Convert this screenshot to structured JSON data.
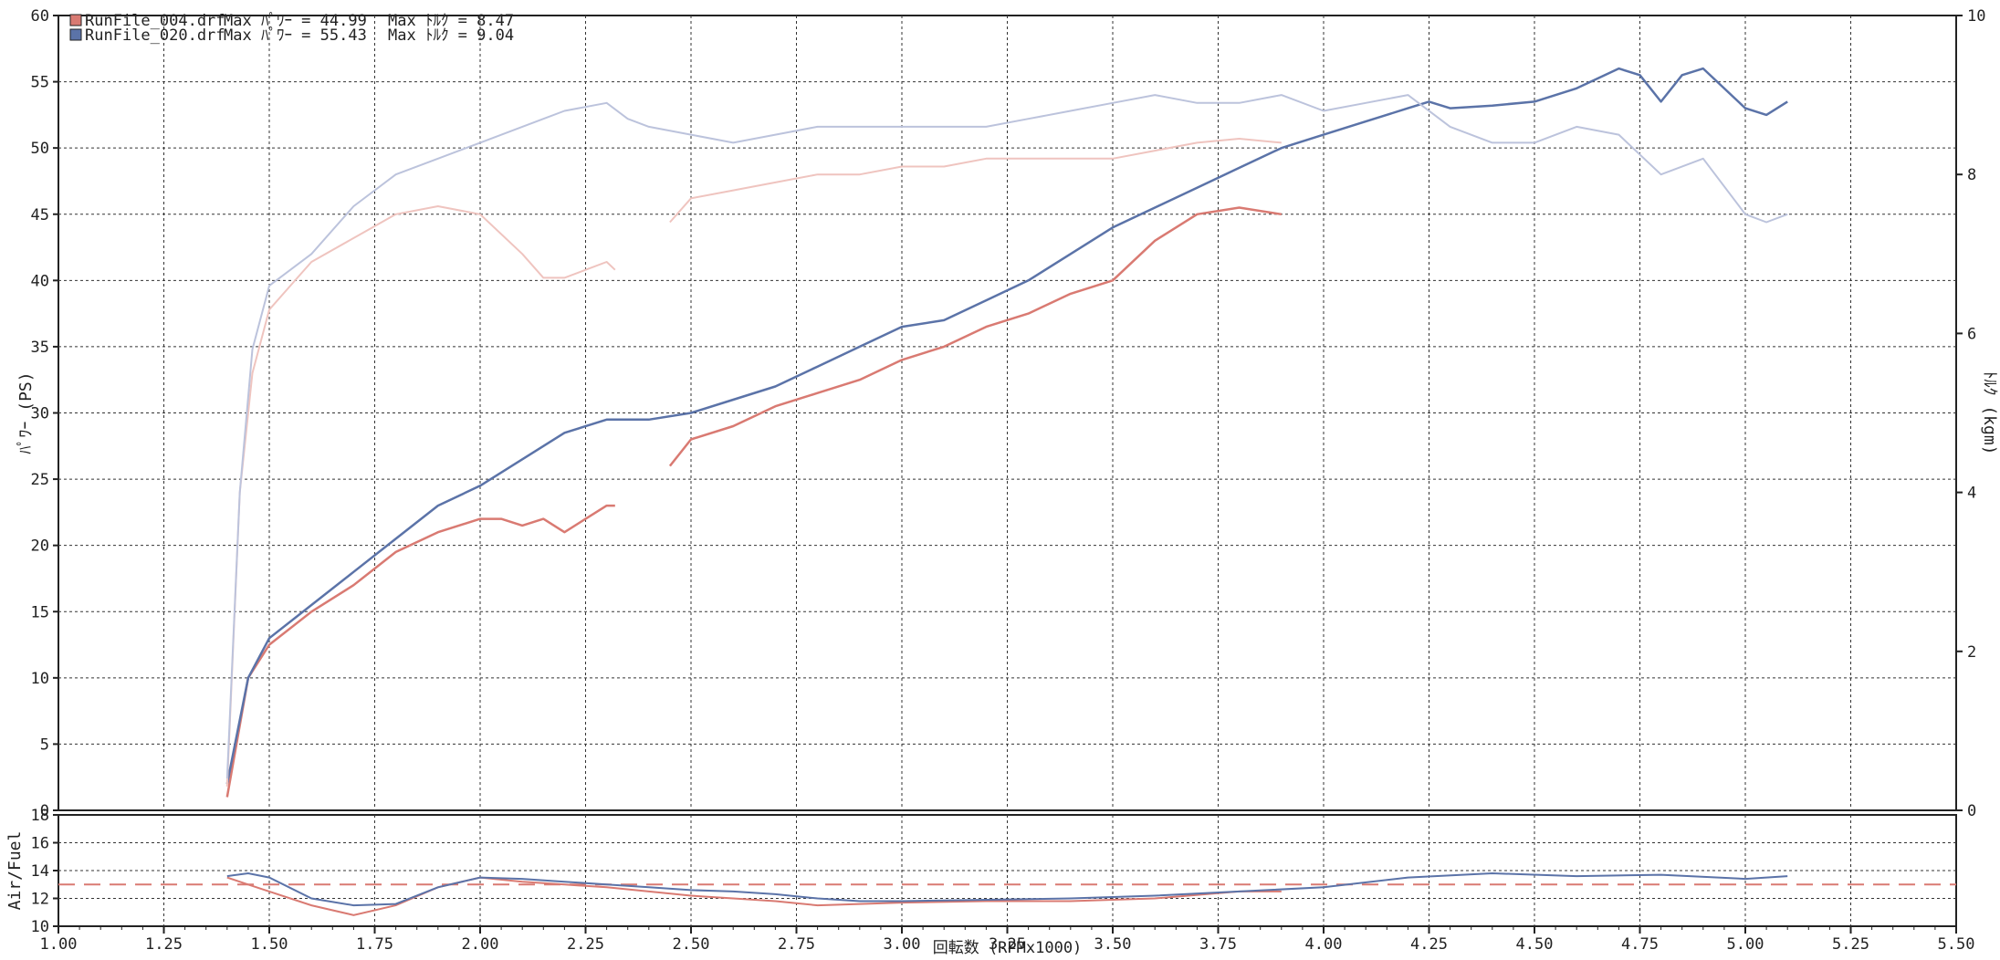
{
  "colors": {
    "red": "#d97a72",
    "blue": "#5b73a8",
    "red_light": "#efc4bf",
    "blue_light": "#bcc3dc"
  },
  "chart_data": [
    {
      "type": "line",
      "title": "",
      "xlabel": "",
      "ylabel": "ﾊﾟﾜｰ (PS)",
      "y2label": "ﾄﾙｸ (kgm)",
      "xlim": [
        1.0,
        5.5
      ],
      "ylim": [
        0,
        60
      ],
      "y2lim": [
        0,
        10
      ],
      "grid": true,
      "legend_position": "top-left",
      "x_ticks": [
        "1.00",
        "1.25",
        "1.50",
        "1.75",
        "2.00",
        "2.25",
        "2.50",
        "2.75",
        "3.00",
        "3.25",
        "3.50",
        "3.75",
        "4.00",
        "4.25",
        "4.50",
        "4.75",
        "5.00",
        "5.25",
        "5.50"
      ],
      "y_ticks": [
        "0",
        "5",
        "10",
        "15",
        "20",
        "25",
        "30",
        "35",
        "40",
        "45",
        "50",
        "55",
        "60"
      ],
      "y2_ticks": [
        "0",
        "2",
        "4",
        "6",
        "8",
        "10"
      ],
      "legend": [
        {
          "file": "RunFile_004.drf",
          "power_label": "Max ﾊﾟﾜｰ = 44.99",
          "torque_label": "Max ﾄﾙｸ = 8.47",
          "color": "#d97a72"
        },
        {
          "file": "RunFile_020.drf",
          "power_label": "Max ﾊﾟﾜｰ = 55.43",
          "torque_label": "Max ﾄﾙｸ = 9.04",
          "color": "#5b73a8"
        }
      ],
      "series": [
        {
          "name": "RunFile_004.drf",
          "quantity": "power",
          "segments": [
            {
              "x": [
                1.4,
                1.45,
                1.5,
                1.6,
                1.7,
                1.8,
                1.9,
                2.0,
                2.05,
                2.1,
                2.15,
                2.2,
                2.25,
                2.3,
                2.32
              ],
              "y": [
                1,
                10,
                12.5,
                15,
                17,
                19.5,
                21,
                22,
                22,
                21.5,
                22,
                21,
                22,
                23,
                23
              ]
            },
            {
              "x": [
                2.45,
                2.5,
                2.6,
                2.7,
                2.8,
                2.9,
                3.0,
                3.1,
                3.2,
                3.3,
                3.4,
                3.5,
                3.6,
                3.7,
                3.8,
                3.9
              ],
              "y": [
                26,
                28,
                29,
                30.5,
                31.5,
                32.5,
                34,
                35,
                36.5,
                37.5,
                39,
                40,
                43,
                45,
                45.5,
                45
              ]
            }
          ]
        },
        {
          "name": "RunFile_020.drf",
          "quantity": "power",
          "segments": [
            {
              "x": [
                1.4,
                1.45,
                1.5,
                1.6,
                1.7,
                1.8,
                1.9,
                2.0,
                2.1,
                2.2,
                2.3,
                2.4,
                2.5,
                2.6,
                2.7,
                2.8,
                2.9,
                3.0,
                3.1,
                3.2,
                3.3,
                3.4,
                3.5,
                3.6,
                3.7,
                3.8,
                3.9,
                4.0,
                4.1,
                4.2,
                4.25,
                4.3,
                4.4,
                4.5,
                4.6,
                4.7,
                4.75,
                4.8,
                4.85,
                4.9,
                5.0,
                5.05,
                5.1
              ],
              "y": [
                2,
                10,
                13,
                15.5,
                18,
                20.5,
                23,
                24.5,
                26.5,
                28.5,
                29.5,
                29.5,
                30,
                31,
                32,
                33.5,
                35,
                36.5,
                37,
                38.5,
                40,
                42,
                44,
                45.5,
                47,
                48.5,
                50,
                51,
                52,
                53,
                53.5,
                53,
                53.2,
                53.5,
                54.5,
                56,
                55.5,
                53.5,
                55.5,
                56,
                53,
                52.5,
                53.5
              ]
            }
          ]
        },
        {
          "name": "RunFile_004.drf",
          "quantity": "torque",
          "segments": [
            {
              "x": [
                1.4,
                1.43,
                1.46,
                1.5,
                1.55,
                1.6,
                1.7,
                1.8,
                1.9,
                2.0,
                2.1,
                2.15,
                2.2,
                2.25,
                2.3,
                2.32
              ],
              "y": [
                0.3,
                4,
                5.5,
                6.3,
                6.6,
                6.9,
                7.2,
                7.5,
                7.6,
                7.5,
                7.0,
                6.7,
                6.7,
                6.8,
                6.9,
                6.8
              ]
            },
            {
              "x": [
                2.45,
                2.5,
                2.6,
                2.7,
                2.8,
                2.9,
                3.0,
                3.1,
                3.2,
                3.3,
                3.4,
                3.5,
                3.6,
                3.7,
                3.8,
                3.9
              ],
              "y": [
                7.4,
                7.7,
                7.8,
                7.9,
                8.0,
                8.0,
                8.1,
                8.1,
                8.2,
                8.2,
                8.2,
                8.2,
                8.3,
                8.4,
                8.45,
                8.4
              ]
            }
          ]
        },
        {
          "name": "RunFile_020.drf",
          "quantity": "torque",
          "segments": [
            {
              "x": [
                1.4,
                1.43,
                1.46,
                1.5,
                1.55,
                1.6,
                1.7,
                1.8,
                1.9,
                2.0,
                2.1,
                2.2,
                2.3,
                2.35,
                2.4,
                2.5,
                2.6,
                2.7,
                2.8,
                2.9,
                3.0,
                3.1,
                3.2,
                3.3,
                3.4,
                3.5,
                3.6,
                3.7,
                3.8,
                3.9,
                4.0,
                4.1,
                4.2,
                4.3,
                4.4,
                4.5,
                4.6,
                4.7,
                4.8,
                4.9,
                5.0,
                5.05,
                5.1
              ],
              "y": [
                0.4,
                4,
                5.8,
                6.6,
                6.8,
                7.0,
                7.6,
                8.0,
                8.2,
                8.4,
                8.6,
                8.8,
                8.9,
                8.7,
                8.6,
                8.5,
                8.4,
                8.5,
                8.6,
                8.6,
                8.6,
                8.6,
                8.6,
                8.7,
                8.8,
                8.9,
                9.0,
                8.9,
                8.9,
                9.0,
                8.8,
                8.9,
                9.0,
                8.6,
                8.4,
                8.4,
                8.6,
                8.5,
                8.0,
                8.2,
                7.5,
                7.4,
                7.5
              ]
            }
          ]
        }
      ]
    },
    {
      "type": "line",
      "title": "",
      "xlabel": "回転数 (RPMx1000)",
      "ylabel": "Air/Fuel",
      "xlim": [
        1.0,
        5.5
      ],
      "ylim": [
        10,
        18
      ],
      "grid": true,
      "y_ticks": [
        "10",
        "12",
        "14",
        "16",
        "18"
      ],
      "reference_line": {
        "y": 13.0,
        "style": "dashed",
        "color": "#d97a72"
      },
      "series": [
        {
          "name": "RunFile_004.drf",
          "x": [
            1.4,
            1.45,
            1.5,
            1.6,
            1.7,
            1.8,
            1.9,
            2.0,
            2.1,
            2.2,
            2.3,
            2.4,
            2.5,
            2.6,
            2.7,
            2.8,
            2.9,
            3.0,
            3.2,
            3.4,
            3.6,
            3.8,
            3.9
          ],
          "y": [
            13.5,
            13.0,
            12.5,
            11.5,
            10.8,
            11.5,
            12.8,
            13.5,
            13.2,
            13.0,
            12.8,
            12.5,
            12.2,
            12.0,
            11.8,
            11.5,
            11.6,
            11.7,
            11.8,
            11.8,
            12.0,
            12.5,
            12.5
          ]
        },
        {
          "name": "RunFile_020.drf",
          "x": [
            1.4,
            1.45,
            1.5,
            1.6,
            1.7,
            1.8,
            1.9,
            2.0,
            2.1,
            2.2,
            2.3,
            2.4,
            2.5,
            2.6,
            2.7,
            2.8,
            2.9,
            3.0,
            3.2,
            3.4,
            3.6,
            3.8,
            4.0,
            4.2,
            4.4,
            4.6,
            4.8,
            5.0,
            5.1
          ],
          "y": [
            13.6,
            13.8,
            13.5,
            12.0,
            11.5,
            11.6,
            12.8,
            13.5,
            13.4,
            13.2,
            13.0,
            12.8,
            12.6,
            12.5,
            12.3,
            12.0,
            11.8,
            11.8,
            11.9,
            12.0,
            12.2,
            12.5,
            12.8,
            13.5,
            13.8,
            13.6,
            13.7,
            13.4,
            13.6
          ]
        }
      ]
    }
  ]
}
